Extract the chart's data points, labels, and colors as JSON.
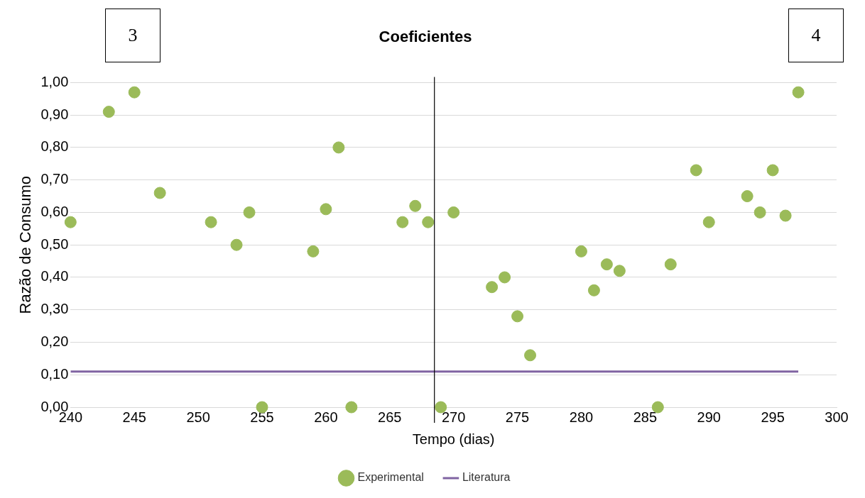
{
  "chart_data": {
    "type": "scatter",
    "title": "Coeficientes",
    "xlabel": "Tempo (dias)",
    "ylabel": "Razão de Consumo",
    "annotations": [
      "3",
      "4"
    ],
    "x": [
      240,
      243,
      245,
      247,
      251,
      253,
      254,
      255,
      259,
      260,
      261,
      262,
      266,
      267,
      268,
      269,
      270,
      273,
      274,
      275,
      276,
      280,
      281,
      282,
      283,
      286,
      287,
      289,
      290,
      293,
      294,
      295,
      296,
      297
    ],
    "series": [
      {
        "name": "Experimental",
        "marker": "circle",
        "color": "#9bbb59",
        "values": [
          0.57,
          0.91,
          0.97,
          0.66,
          0.57,
          0.5,
          0.6,
          0,
          0.48,
          0.61,
          0.8,
          0,
          0.57,
          0.62,
          0.57,
          0,
          0.6,
          0.37,
          0.4,
          0.28,
          0.16,
          0.48,
          0.36,
          0.44,
          0.42,
          0,
          0.44,
          0.73,
          0.57,
          0.65,
          0.6,
          0.73,
          0.59,
          0.97
        ]
      },
      {
        "name": "Literatura",
        "type": "line",
        "color": "#8064a2",
        "x": [
          240,
          297
        ],
        "values": [
          0.11,
          0.11
        ]
      }
    ],
    "xlim": [
      240,
      300
    ],
    "xticks": [
      240,
      245,
      250,
      255,
      260,
      265,
      270,
      275,
      280,
      285,
      290,
      295,
      300
    ],
    "ylim": [
      0,
      1
    ],
    "yticks": [
      {
        "value": 0,
        "label": "0,00"
      },
      {
        "value": 0.1,
        "label": "0,10"
      },
      {
        "value": 0.2,
        "label": "0,20"
      },
      {
        "value": 0.3,
        "label": "0,30"
      },
      {
        "value": 0.4,
        "label": "0,40"
      },
      {
        "value": 0.5,
        "label": "0,50"
      },
      {
        "value": 0.6,
        "label": "0,60"
      },
      {
        "value": 0.7,
        "label": "0,70"
      },
      {
        "value": 0.8,
        "label": "0,80"
      },
      {
        "value": 0.9,
        "label": "0,90"
      },
      {
        "value": 1,
        "label": "1,00"
      }
    ],
    "ref_lines": [
      {
        "axis": "x",
        "value": 268.5,
        "color": "#000000"
      }
    ],
    "grid": "y",
    "legend": "bottom"
  }
}
